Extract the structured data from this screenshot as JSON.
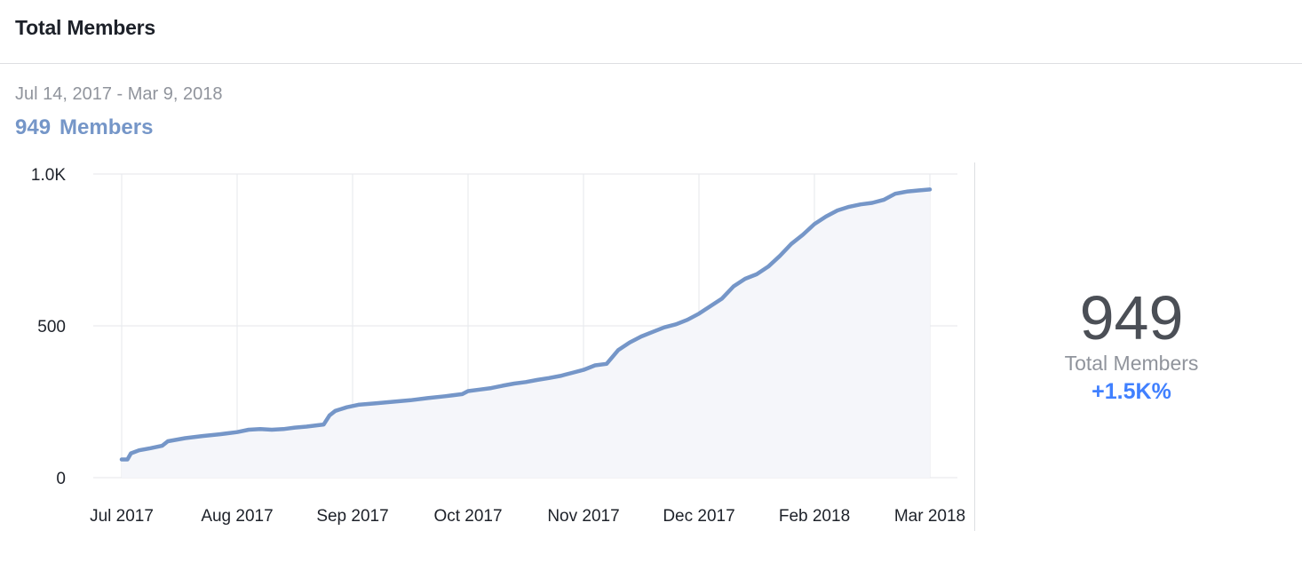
{
  "header": {
    "title": "Total Members"
  },
  "date_range": "Jul 14, 2017 - Mar 9, 2018",
  "members": {
    "count": "949",
    "label": "Members"
  },
  "summary": {
    "value": "949",
    "label": "Total Members",
    "change": "+1.5K%"
  },
  "colors": {
    "line": "#7596c8",
    "area": "#f5f6fa",
    "change": "#4080ff",
    "grid": "#e9ebee"
  },
  "chart_data": {
    "type": "area",
    "title": "",
    "xlabel": "",
    "ylabel": "",
    "ylim": [
      0,
      1000
    ],
    "yticks": [
      "0",
      "500",
      "1.0K"
    ],
    "ytick_values": [
      0,
      500,
      1000
    ],
    "xticks": [
      "Jul 2017",
      "Aug 2017",
      "Sep 2017",
      "Oct 2017",
      "Nov 2017",
      "Dec 2017",
      "Feb 2018",
      "Mar 2018"
    ],
    "grid": true,
    "series": [
      {
        "values": [
          [
            0,
            60
          ],
          [
            0.05,
            60
          ],
          [
            0.08,
            80
          ],
          [
            0.15,
            90
          ],
          [
            0.25,
            97
          ],
          [
            0.35,
            105
          ],
          [
            0.4,
            120
          ],
          [
            0.55,
            130
          ],
          [
            0.7,
            137
          ],
          [
            0.85,
            143
          ],
          [
            1.0,
            150
          ],
          [
            1.1,
            158
          ],
          [
            1.2,
            160
          ],
          [
            1.3,
            158
          ],
          [
            1.4,
            160
          ],
          [
            1.5,
            165
          ],
          [
            1.6,
            168
          ],
          [
            1.75,
            175
          ],
          [
            1.8,
            205
          ],
          [
            1.85,
            220
          ],
          [
            1.95,
            232
          ],
          [
            2.05,
            240
          ],
          [
            2.2,
            245
          ],
          [
            2.35,
            250
          ],
          [
            2.5,
            255
          ],
          [
            2.65,
            262
          ],
          [
            2.8,
            268
          ],
          [
            2.95,
            275
          ],
          [
            3.0,
            285
          ],
          [
            3.1,
            290
          ],
          [
            3.2,
            295
          ],
          [
            3.3,
            303
          ],
          [
            3.4,
            310
          ],
          [
            3.5,
            315
          ],
          [
            3.6,
            322
          ],
          [
            3.7,
            328
          ],
          [
            3.8,
            335
          ],
          [
            3.9,
            345
          ],
          [
            4.0,
            355
          ],
          [
            4.1,
            370
          ],
          [
            4.2,
            375
          ],
          [
            4.3,
            420
          ],
          [
            4.4,
            445
          ],
          [
            4.5,
            465
          ],
          [
            4.6,
            480
          ],
          [
            4.7,
            495
          ],
          [
            4.8,
            505
          ],
          [
            4.9,
            520
          ],
          [
            5.0,
            540
          ],
          [
            5.1,
            565
          ],
          [
            5.2,
            590
          ],
          [
            5.3,
            630
          ],
          [
            5.4,
            655
          ],
          [
            5.5,
            670
          ],
          [
            5.6,
            695
          ],
          [
            5.7,
            730
          ],
          [
            5.8,
            770
          ],
          [
            5.9,
            800
          ],
          [
            6.0,
            835
          ],
          [
            6.1,
            860
          ],
          [
            6.2,
            880
          ],
          [
            6.3,
            892
          ],
          [
            6.4,
            900
          ],
          [
            6.5,
            905
          ],
          [
            6.6,
            915
          ],
          [
            6.7,
            935
          ],
          [
            6.8,
            942
          ],
          [
            6.9,
            946
          ],
          [
            7.0,
            949
          ]
        ]
      }
    ]
  }
}
